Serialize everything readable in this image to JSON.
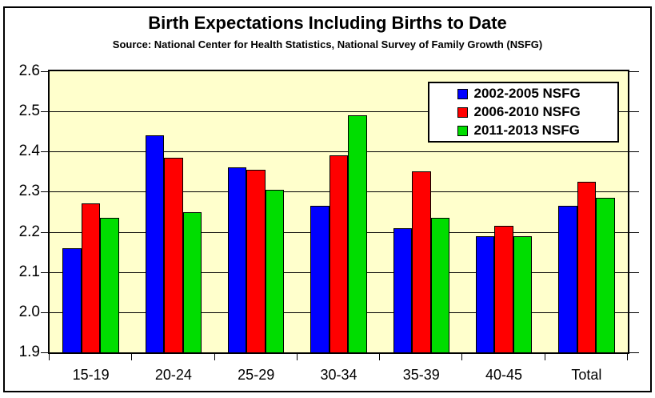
{
  "title": "Birth Expectations Including Births to Date",
  "subtitle": "Source: National Center for Health Statistics, National Survey of Family Growth (NSFG)",
  "chart_data": {
    "type": "bar",
    "title": "Birth Expectations Including Births to Date",
    "subtitle": "Source: National Center for Health Statistics, National Survey of Family Growth (NSFG)",
    "categories": [
      "15-19",
      "20-24",
      "25-29",
      "30-34",
      "35-39",
      "40-45",
      "Total"
    ],
    "series": [
      {
        "name": "2002-2005 NSFG",
        "color": "#0000FF",
        "values": [
          2.16,
          2.44,
          2.36,
          2.265,
          2.21,
          2.19,
          2.265
        ]
      },
      {
        "name": "2006-2010 NSFG",
        "color": "#FF0000",
        "values": [
          2.27,
          2.385,
          2.355,
          2.39,
          2.35,
          2.215,
          2.325
        ]
      },
      {
        "name": "2011-2013 NSFG",
        "color": "#00DD00",
        "values": [
          2.235,
          2.25,
          2.305,
          2.49,
          2.235,
          2.19,
          2.285
        ]
      }
    ],
    "xlabel": "",
    "ylabel": "",
    "ylim": [
      1.9,
      2.6
    ],
    "ytick_step": 0.1,
    "yticks": [
      "1.9",
      "2.0",
      "2.1",
      "2.2",
      "2.3",
      "2.4",
      "2.5",
      "2.6"
    ],
    "grid": true,
    "gridline_color": "#000000",
    "plot_bg_color": "#FFFFCC",
    "legend_position": "top-right",
    "legend_labels": [
      "2002-2005 NSFG",
      "2006-2010 NSFG",
      "2011-2013 NSFG"
    ]
  }
}
